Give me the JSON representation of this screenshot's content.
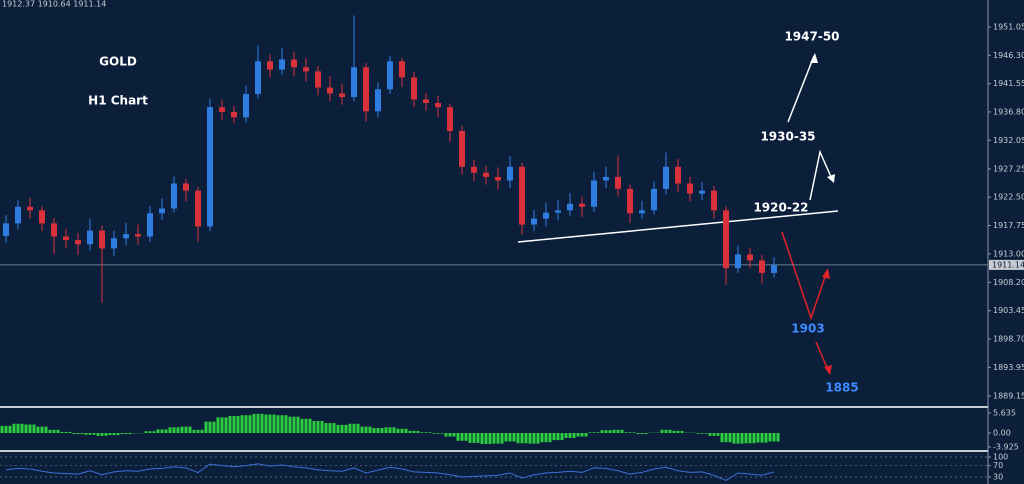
{
  "chart_data": [
    {
      "type": "candlestick",
      "header": "1912.37 1910.64 1911.14",
      "up_color": "#2f7de1",
      "down_color": "#d9323c",
      "ylim": [
        1887.47,
        1955.58
      ],
      "yticks": [
        1951.05,
        {
          "value": 1946.3,
          "label": "1946.30"
        },
        1941.55,
        {
          "value": 1936.8,
          "label": "1936.80"
        },
        1932.05,
        1927.25,
        {
          "value": 1922.5,
          "label": "1922.50"
        },
        1917.75,
        {
          "value": 1913,
          "label": "1913.00"
        },
        {
          "value": 1908.2,
          "label": "1908.20"
        },
        1903.45,
        {
          "value": 1898.7,
          "label": "1898.70"
        },
        1893.95,
        1889.15
      ],
      "last_price": 1911.14,
      "annotations": [
        "GOLD",
        "H1 Chart",
        "1947-50",
        "1930-35",
        "1920-22",
        "1903",
        "1885"
      ],
      "annotation_colors": [
        "#ffffff",
        "#ffffff",
        "#ffffff",
        "#ffffff",
        "#ffffff",
        "#3d8bff",
        "#3d8bff"
      ],
      "candles": [
        [
          1916.0,
          1919.5,
          1914.8,
          1918.1
        ],
        [
          1918.1,
          1922.0,
          1917.2,
          1920.9
        ],
        [
          1920.9,
          1922.4,
          1918.9,
          1920.3
        ],
        [
          1920.3,
          1921.0,
          1916.8,
          1918.1
        ],
        [
          1918.1,
          1919.0,
          1913.0,
          1915.9
        ],
        [
          1915.9,
          1917.2,
          1913.9,
          1915.3
        ],
        [
          1915.3,
          1916.5,
          1912.8,
          1914.6
        ],
        [
          1914.6,
          1918.8,
          1913.5,
          1916.9
        ],
        [
          1916.9,
          1917.8,
          1904.8,
          1913.9
        ],
        [
          1913.9,
          1916.9,
          1912.6,
          1915.6
        ],
        [
          1915.6,
          1918.2,
          1914.4,
          1916.3
        ],
        [
          1916.3,
          1917.9,
          1914.5,
          1915.9
        ],
        [
          1915.9,
          1921.0,
          1915.0,
          1919.8
        ],
        [
          1919.8,
          1922.3,
          1918.7,
          1920.6
        ],
        [
          1920.6,
          1926.0,
          1919.9,
          1924.8
        ],
        [
          1924.8,
          1925.6,
          1921.8,
          1923.6
        ],
        [
          1923.6,
          1924.2,
          1915.0,
          1917.6
        ],
        [
          1917.6,
          1939.0,
          1916.8,
          1937.6
        ],
        [
          1937.6,
          1938.9,
          1935.5,
          1936.8
        ],
        [
          1936.8,
          1937.8,
          1934.9,
          1935.9
        ],
        [
          1935.9,
          1941.2,
          1935.0,
          1939.8
        ],
        [
          1939.8,
          1948.0,
          1939.0,
          1945.3
        ],
        [
          1945.3,
          1946.5,
          1942.6,
          1943.9
        ],
        [
          1943.9,
          1947.6,
          1943.0,
          1945.6
        ],
        [
          1945.6,
          1946.9,
          1942.8,
          1944.3
        ],
        [
          1944.3,
          1945.8,
          1941.9,
          1943.6
        ],
        [
          1943.6,
          1944.5,
          1939.6,
          1940.9
        ],
        [
          1940.9,
          1942.8,
          1938.6,
          1939.9
        ],
        [
          1939.9,
          1941.5,
          1938.0,
          1939.3
        ],
        [
          1939.3,
          1953.0,
          1938.6,
          1944.3
        ],
        [
          1944.3,
          1945.0,
          1935.2,
          1936.9
        ],
        [
          1936.9,
          1941.8,
          1936.0,
          1940.6
        ],
        [
          1940.6,
          1946.2,
          1939.8,
          1945.3
        ],
        [
          1945.3,
          1945.9,
          1941.0,
          1942.6
        ],
        [
          1942.6,
          1943.5,
          1937.6,
          1938.9
        ],
        [
          1938.9,
          1940.0,
          1937.0,
          1938.3
        ],
        [
          1938.3,
          1939.5,
          1935.9,
          1937.6
        ],
        [
          1937.6,
          1938.2,
          1931.8,
          1933.6
        ],
        [
          1933.6,
          1934.5,
          1926.3,
          1927.6
        ],
        [
          1927.6,
          1928.8,
          1925.2,
          1926.6
        ],
        [
          1926.6,
          1927.8,
          1924.6,
          1925.9
        ],
        [
          1925.9,
          1927.5,
          1923.8,
          1925.3
        ],
        [
          1925.3,
          1929.4,
          1924.0,
          1927.6
        ],
        [
          1927.6,
          1928.3,
          1916.2,
          1917.9
        ],
        [
          1917.9,
          1920.4,
          1916.8,
          1918.9
        ],
        [
          1918.9,
          1921.6,
          1917.6,
          1919.9
        ],
        [
          1919.9,
          1922.0,
          1918.6,
          1920.3
        ],
        [
          1920.3,
          1923.2,
          1919.4,
          1921.4
        ],
        [
          1921.4,
          1922.6,
          1919.2,
          1920.9
        ],
        [
          1920.9,
          1926.8,
          1920.0,
          1925.3
        ],
        [
          1925.3,
          1927.6,
          1924.0,
          1925.9
        ],
        [
          1925.9,
          1929.5,
          1922.6,
          1923.9
        ],
        [
          1923.9,
          1924.6,
          1918.2,
          1919.8
        ],
        [
          1919.8,
          1921.9,
          1918.8,
          1920.3
        ],
        [
          1920.3,
          1925.2,
          1919.6,
          1923.9
        ],
        [
          1923.9,
          1930.0,
          1923.0,
          1927.6
        ],
        [
          1927.6,
          1928.9,
          1923.4,
          1924.8
        ],
        [
          1924.8,
          1925.9,
          1921.8,
          1923.1
        ],
        [
          1923.1,
          1925.0,
          1922.0,
          1923.6
        ],
        [
          1923.6,
          1924.4,
          1918.9,
          1920.3
        ],
        [
          1920.3,
          1921.0,
          1907.8,
          1910.6
        ],
        [
          1910.6,
          1914.4,
          1909.8,
          1912.9
        ],
        [
          1912.9,
          1914.0,
          1910.6,
          1911.9
        ],
        [
          1911.9,
          1912.8,
          1908.0,
          1909.8
        ],
        [
          1909.8,
          1912.4,
          1909.0,
          1911.1
        ]
      ]
    },
    {
      "type": "bar",
      "color": "#2ecc40",
      "ylim": [
        -4.79,
        6.76
      ],
      "yticks": [
        5.635,
        {
          "value": 0,
          "label": "0.00"
        },
        -3.925
      ],
      "values": [
        2.0,
        2.6,
        2.4,
        1.8,
        0.9,
        0.3,
        -0.3,
        -0.5,
        -0.8,
        -0.6,
        -0.3,
        -0.1,
        0.5,
        1.0,
        1.6,
        1.8,
        0.9,
        3.2,
        4.4,
        4.8,
        5.0,
        5.4,
        5.2,
        5.0,
        4.6,
        4.0,
        3.4,
        2.8,
        2.3,
        2.6,
        1.8,
        1.4,
        1.6,
        1.2,
        0.6,
        0.2,
        -0.2,
        -1.0,
        -2.2,
        -2.8,
        -3.1,
        -3.0,
        -2.4,
        -2.9,
        -3.0,
        -2.6,
        -2.0,
        -1.4,
        -1.0,
        0.2,
        0.8,
        0.9,
        0.2,
        -0.3,
        0.1,
        0.9,
        0.6,
        0.1,
        -0.2,
        -0.8,
        -2.6,
        -3.0,
        -2.9,
        -2.7,
        -2.4
      ]
    },
    {
      "type": "line",
      "color": "#3b6fd8",
      "ylim": [
        5.5,
        114
      ],
      "yticks": [
        100,
        70,
        30
      ],
      "values": [
        55,
        60,
        58,
        50,
        44,
        42,
        40,
        52,
        38,
        48,
        52,
        50,
        58,
        60,
        66,
        62,
        45,
        75,
        70,
        66,
        70,
        76,
        68,
        72,
        66,
        62,
        55,
        52,
        50,
        62,
        44,
        54,
        64,
        58,
        48,
        46,
        44,
        38,
        30,
        32,
        34,
        36,
        44,
        26,
        38,
        44,
        46,
        50,
        46,
        62,
        60,
        52,
        40,
        46,
        58,
        64,
        52,
        46,
        48,
        36,
        18,
        44,
        40,
        36,
        48
      ]
    }
  ]
}
